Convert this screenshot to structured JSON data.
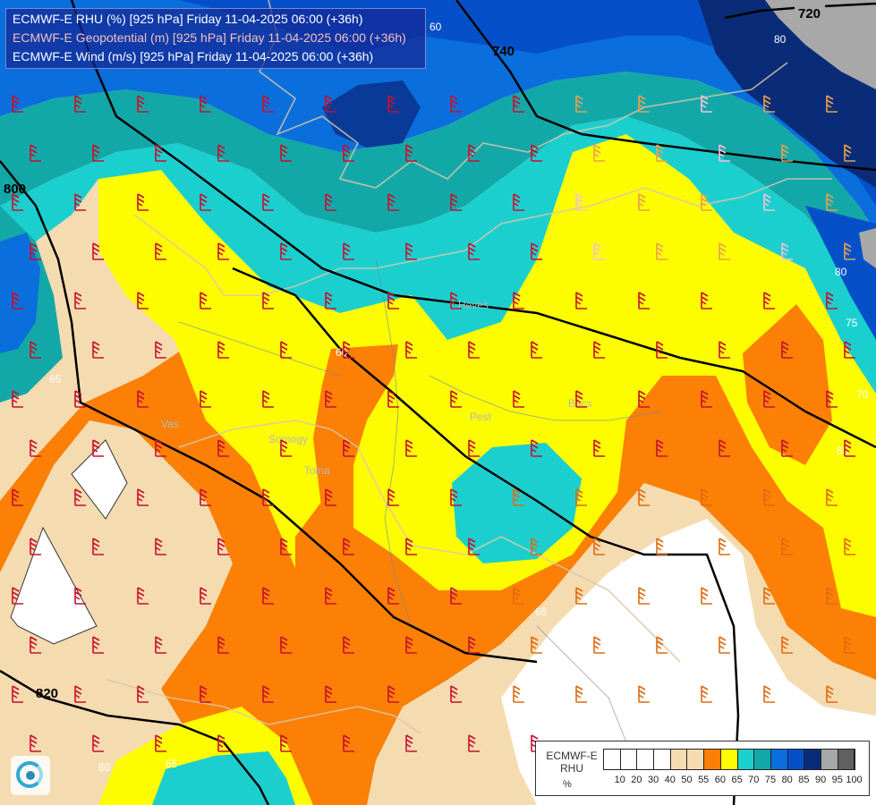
{
  "title": {
    "line1": "ECMWF-E RHU (%) [925 hPa] Friday 11-04-2025 06:00 (+36h)",
    "line2": "ECMWF-E Geopotential (m) [925 hPa] Friday 11-04-2025 06:00 (+36h)",
    "line3": "ECMWF-E Wind (m/s) [925 hPa] Friday 11-04-2025 06:00 (+36h)"
  },
  "geopotential_labels": [
    "720",
    "740",
    "800",
    "820"
  ],
  "rhu_labels": [
    "60",
    "80",
    "80",
    "75",
    "70",
    "65",
    "60",
    "65",
    "50",
    "65",
    "60",
    "65"
  ],
  "place_names": [
    "Pest",
    "Bács",
    "Heves",
    "Vas",
    "Somogy",
    "Tolna"
  ],
  "legend": {
    "title_line1": "ECMWF-E",
    "title_line2": "RHU",
    "unit": "%",
    "ticks": [
      "10",
      "20",
      "30",
      "40",
      "50",
      "55",
      "60",
      "65",
      "70",
      "75",
      "80",
      "85",
      "90",
      "95",
      "100"
    ],
    "colors": [
      "#ffffff",
      "#ffffff",
      "#ffffff",
      "#ffffff",
      "#f5dbb0",
      "#f5dbb0",
      "#fb8005",
      "#fdfd00",
      "#1ccfcf",
      "#13a8a8",
      "#0a6edc",
      "#0550c8",
      "#0a2c78",
      "#a8a8a8",
      "#606060"
    ]
  },
  "colors": {
    "rh_50_55": "#f5dbb0",
    "rh_55_60": "#fb8005",
    "rh_60_65": "#fdfd00",
    "rh_65_70": "#1ccfcf",
    "rh_70_75": "#13a8a8",
    "rh_75_80": "#0a6edc",
    "rh_80_85": "#0550c8",
    "rh_85_90": "#0a2c78",
    "rh_90_95": "#a8a8a8"
  },
  "logo": "ecmwf-swirl-logo"
}
